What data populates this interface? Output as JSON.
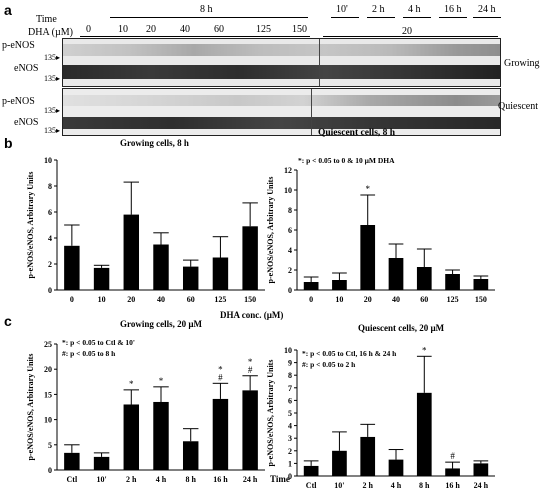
{
  "panel_a": {
    "letter": "a",
    "time_label": "Time",
    "dha_label": "DHA (µM)",
    "time_8h": "8 h",
    "time_points": [
      "10'",
      "2 h",
      "4 h",
      "16 h",
      "24 h"
    ],
    "dha_concs": [
      "0",
      "10",
      "20",
      "40",
      "60",
      "125",
      "150"
    ],
    "dha_fixed": "20",
    "rows": [
      "p-eNOS",
      "eNOS",
      "p-eNOS",
      "eNOS"
    ],
    "mw": "135",
    "growing": "Growing",
    "quiescent": "Quiescent",
    "quiescent_cells": "Quiescent cells, 8 h"
  },
  "panel_b": {
    "letter": "b",
    "left_title": "Growing cells, 8 h",
    "right_note": "*: p < 0.05 to 0 & 10 µM DHA",
    "shared_xlabel": "DHA conc. (µM)"
  },
  "panel_c": {
    "letter": "c",
    "left_title": "Growing cells, 20 µM",
    "left_note1": "*: p < 0.05 to Ctl & 10'",
    "left_note2": "#: p < 0.05 to 8 h",
    "right_title": "Quiescent cells, 20 µM",
    "right_note1": "*: p < 0.05 to Ctl, 16 h & 24 h",
    "right_note2": "#: p < 0.05 to 2 h",
    "time_label": "Time"
  },
  "chart_data": [
    {
      "type": "bar",
      "title": "Growing cells, 8 h",
      "ylabel": "p-eNOS/eNOS, Arbitrary Units",
      "categories": [
        "0",
        "10",
        "20",
        "40",
        "60",
        "125",
        "150"
      ],
      "values": [
        3.4,
        1.7,
        5.8,
        3.5,
        1.8,
        2.5,
        4.9
      ],
      "errors": [
        1.6,
        0.2,
        2.5,
        0.9,
        0.5,
        1.6,
        1.8
      ],
      "ylim": [
        0,
        10
      ],
      "yticks": [
        "0",
        "2",
        "4",
        "6",
        "8",
        "10"
      ],
      "sig": [
        "",
        "",
        "",
        "",
        "",
        "",
        ""
      ]
    },
    {
      "type": "bar",
      "title": "",
      "ylabel": "p-eNOS/eNOS, Arbitrary Units",
      "categories": [
        "0",
        "10",
        "20",
        "40",
        "60",
        "125",
        "150"
      ],
      "values": [
        0.8,
        1.0,
        6.5,
        3.2,
        2.3,
        1.6,
        1.1
      ],
      "errors": [
        0.5,
        0.7,
        3.0,
        1.4,
        1.8,
        0.4,
        0.3
      ],
      "ylim": [
        0,
        12
      ],
      "yticks": [
        "0",
        "2",
        "4",
        "6",
        "8",
        "10",
        "12"
      ],
      "sig": [
        "",
        "",
        "*",
        "",
        "",
        "",
        ""
      ]
    },
    {
      "type": "bar",
      "title": "Growing cells, 20 µM",
      "ylabel": "p-eNOS/eNOS, Arbitrary Units",
      "categories": [
        "Ctl",
        "10'",
        "2 h",
        "4 h",
        "8 h",
        "16 h",
        "24 h"
      ],
      "values": [
        3.4,
        2.6,
        13.0,
        13.5,
        5.7,
        14.1,
        15.8
      ],
      "errors": [
        1.6,
        0.8,
        2.9,
        3.0,
        2.5,
        3.1,
        2.9
      ],
      "ylim": [
        0,
        25
      ],
      "yticks": [
        "0",
        "5",
        "10",
        "15",
        "20",
        "25"
      ],
      "sig": [
        "",
        "",
        "*",
        "*",
        "",
        "*#",
        "*#"
      ]
    },
    {
      "type": "bar",
      "title": "Quiescent cells, 20 µM",
      "ylabel": "p-eNOS/eNOS, Arbitrary Units",
      "categories": [
        "Ctl",
        "10'",
        "2 h",
        "4 h",
        "8 h",
        "16 h",
        "24 h"
      ],
      "values": [
        0.8,
        2.0,
        3.1,
        1.3,
        6.6,
        0.6,
        1.0
      ],
      "errors": [
        0.4,
        1.5,
        1.0,
        0.8,
        2.9,
        0.5,
        0.2
      ],
      "ylim": [
        0,
        10
      ],
      "yticks": [
        "0",
        "1",
        "2",
        "3",
        "4",
        "5",
        "6",
        "7",
        "8",
        "9",
        "10"
      ],
      "sig": [
        "",
        "",
        "",
        "",
        "*",
        "#",
        ""
      ]
    }
  ]
}
